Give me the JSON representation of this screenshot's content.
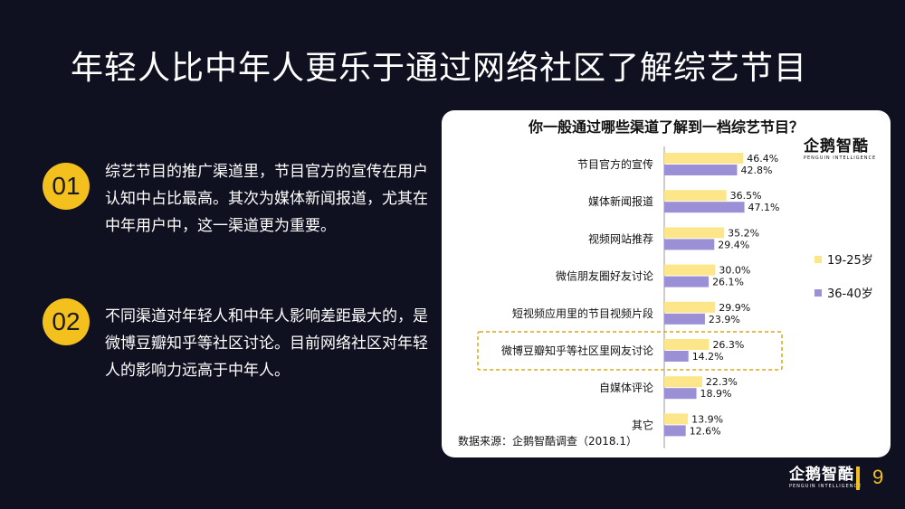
{
  "slide": {
    "title": "年轻人比中年人更乐于通过网络社区了解综艺节目",
    "page_number": "9",
    "accent_color": "#f4c01e",
    "background_color": "#0f1020"
  },
  "points": [
    {
      "number": "01",
      "text": "综艺节目的推广渠道里，节目官方的宣传在用户认知中占比最高。其次为媒体新闻报道，尤其在中年用户中，这一渠道更为重要。"
    },
    {
      "number": "02",
      "text": "不同渠道对年轻人和中年人影响差距最大的，是微博豆瓣知乎等社区讨论。目前网络社区对年轻人的影响力远高于中年人。"
    }
  ],
  "logo": {
    "name": "企鹅智酷",
    "tagline": "PENGUIN INTELLIGENCE"
  },
  "chart_data": {
    "type": "bar",
    "orientation": "horizontal",
    "title": "你一般通过哪些渠道了解到一档综艺节目？",
    "categories": [
      "节目官方的宣传",
      "媒体新闻报道",
      "视频网站推荐",
      "微信朋友圈好友讨论",
      "短视频应用里的节目视频片段",
      "微博豆瓣知乎等社区里网友讨论",
      "自媒体评论",
      "其它"
    ],
    "series": [
      {
        "name": "19-25岁",
        "color": "#fde68a",
        "values": [
          46.4,
          36.5,
          35.2,
          30.0,
          29.9,
          26.3,
          22.3,
          13.9
        ],
        "labels": [
          "46.4%",
          "36.5%",
          "35.2%",
          "30.0%",
          "29.9%",
          "26.3%",
          "22.3%",
          "13.9%"
        ]
      },
      {
        "name": "36-40岁",
        "color": "#9b8fd6",
        "values": [
          42.8,
          47.1,
          29.4,
          26.1,
          23.9,
          14.2,
          18.9,
          12.6
        ],
        "labels": [
          "42.8%",
          "47.1%",
          "29.4%",
          "26.1%",
          "23.9%",
          "14.2%",
          "18.9%",
          "12.6%"
        ]
      }
    ],
    "highlighted_category": "微博豆瓣知乎等社区里网友讨论",
    "xlim": [
      0,
      50
    ],
    "grid": false,
    "legend_position": "right",
    "source": "数据来源：企鹅智酷调查（2018.1）"
  }
}
